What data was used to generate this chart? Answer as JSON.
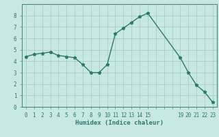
{
  "x": [
    0,
    1,
    2,
    3,
    4,
    5,
    6,
    7,
    8,
    9,
    10,
    11,
    12,
    13,
    14,
    15,
    19,
    20,
    21,
    22,
    23
  ],
  "y": [
    4.4,
    4.6,
    4.7,
    4.8,
    4.5,
    4.4,
    4.3,
    3.7,
    3.0,
    3.0,
    3.7,
    6.4,
    6.9,
    7.4,
    7.9,
    8.2,
    4.3,
    3.0,
    1.9,
    1.3,
    0.4
  ],
  "line_color": "#2a7a6a",
  "marker": "*",
  "marker_size": 3.5,
  "background_color": "#c8e8e4",
  "grid_major_color": "#a0c8c4",
  "grid_minor_color": "#b8dcd8",
  "xlabel": "Humidex (Indice chaleur)",
  "xlim": [
    -0.5,
    23.5
  ],
  "ylim": [
    0,
    9
  ],
  "xtick_labels": [
    "0",
    "1",
    "2",
    "3",
    "4",
    "5",
    "6",
    "7",
    "8",
    "9",
    "10",
    "11",
    "12",
    "13",
    "14",
    "15",
    "",
    "",
    "",
    "19",
    "20",
    "21",
    "22",
    "23"
  ],
  "xtick_positions": [
    0,
    1,
    2,
    3,
    4,
    5,
    6,
    7,
    8,
    9,
    10,
    11,
    12,
    13,
    14,
    15,
    16,
    17,
    18,
    19,
    20,
    21,
    22,
    23
  ],
  "yticks": [
    0,
    1,
    2,
    3,
    4,
    5,
    6,
    7,
    8
  ],
  "xlabel_fontsize": 6.5,
  "tick_fontsize": 5.5,
  "line_width": 1.0,
  "spine_color": "#4a8a80"
}
